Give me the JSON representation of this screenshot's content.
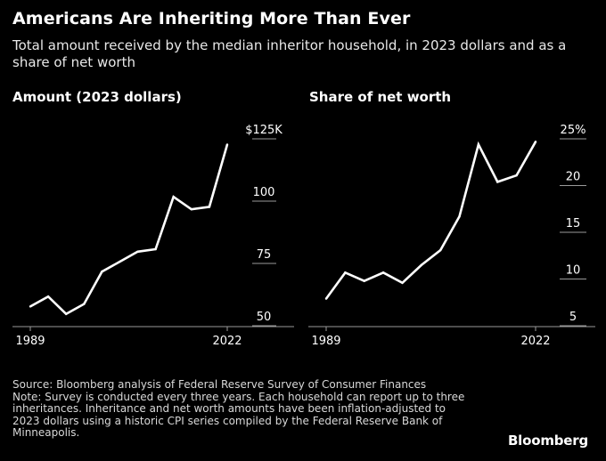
{
  "header": {
    "title": "Americans Are Inheriting More Than Ever",
    "subtitle": "Total amount received by the median inheritor household, in 2023 dollars and as a share of net worth"
  },
  "footer": {
    "source": "Source: Bloomberg analysis of Federal Reserve Survey of Consumer Finances",
    "note": "Note: Survey is conducted every three years. Each household can report up to three inheritances. Inheritance and net worth amounts have been inflation-adjusted to 2023 dollars using a historic CPI series compiled by the Federal Reserve Bank of Minneapolis.",
    "brand": "Bloomberg"
  },
  "colors": {
    "background": "#000000",
    "line": "#ffffff",
    "axis": "#9a9a9a",
    "text": "#ffffff"
  },
  "chart_data": [
    {
      "type": "line",
      "title": "Amount (2023 dollars)",
      "x": [
        1989,
        1992,
        1995,
        1998,
        2001,
        2004,
        2007,
        2010,
        2013,
        2016,
        2019,
        2022
      ],
      "values": [
        57,
        61,
        54,
        58,
        71,
        75,
        79,
        80,
        101,
        96,
        97,
        122
      ],
      "x_ticks": [
        "1989",
        "2022"
      ],
      "y_ticks": [
        "50",
        "75",
        "100",
        "$125K"
      ],
      "ylim": [
        50,
        125
      ],
      "grid": false,
      "xlabel": "",
      "ylabel": ""
    },
    {
      "type": "line",
      "title": "Share of net worth",
      "x": [
        1989,
        1992,
        1995,
        1998,
        2001,
        2004,
        2007,
        2010,
        2013,
        2016,
        2019,
        2022
      ],
      "values": [
        7.7,
        10.5,
        9.6,
        10.5,
        9.4,
        11.3,
        12.9,
        16.5,
        24.2,
        20.2,
        20.9,
        24.5
      ],
      "x_ticks": [
        "1989",
        "2022"
      ],
      "y_ticks": [
        "5",
        "10",
        "15",
        "20",
        "25%"
      ],
      "ylim": [
        5,
        25
      ],
      "grid": false,
      "xlabel": "",
      "ylabel": ""
    }
  ]
}
